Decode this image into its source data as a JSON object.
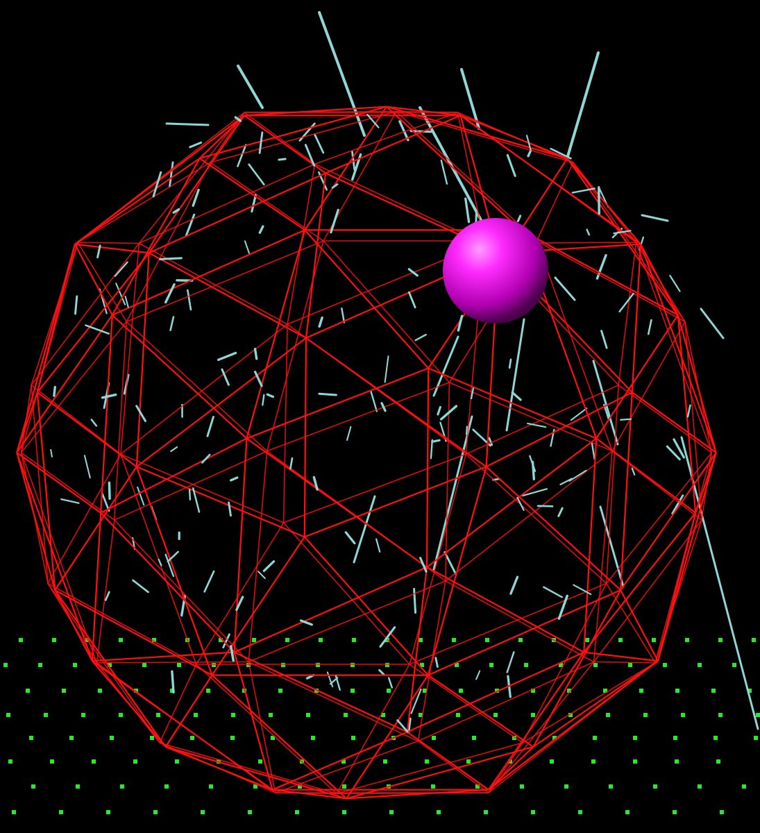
{
  "scene": {
    "background_color": "#000000",
    "wireframe_color": "#ff1010",
    "needle_color": "#8fd6d6",
    "ball_color": "#e010e0",
    "ball_highlight_color": "#ff70ff",
    "grid_dot_color": "#22ee22",
    "objects": [
      "geodesic-wireframe-sphere",
      "magenta-ball",
      "needle-lines",
      "green-dot-grid"
    ]
  }
}
